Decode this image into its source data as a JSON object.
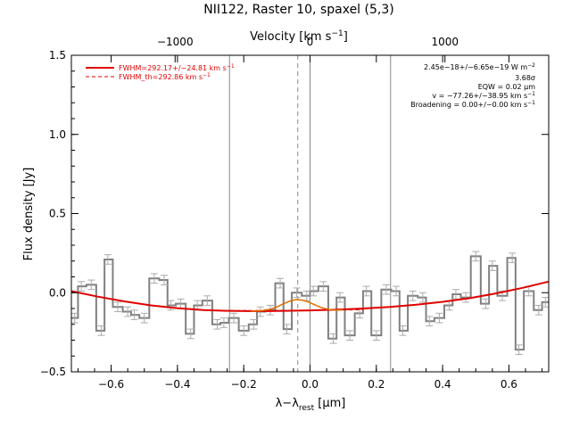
{
  "chart_data": {
    "type": "line",
    "title": "NII122, Raster 10, spaxel (5,3)",
    "xlabel_main": "λ−λ",
    "xlabel_sub": "rest",
    "xlabel_unit": " [μm]",
    "ylabel": "Flux density [Jy]",
    "top_axis_label_main": "Velocity [km s",
    "top_axis_label_sup": "−1",
    "top_axis_label_end": "]",
    "xlim": [
      -0.72,
      0.72
    ],
    "ylim": [
      -0.5,
      1.5
    ],
    "x_ticks": [
      -0.6,
      -0.4,
      -0.2,
      0.0,
      0.2,
      0.4,
      0.6
    ],
    "x_tick_labels": [
      "−0.6",
      "−0.4",
      "−0.2",
      "0.0",
      "0.2",
      "0.4",
      "0.6"
    ],
    "y_ticks": [
      -0.5,
      0.0,
      0.5,
      1.0,
      1.5
    ],
    "y_tick_labels": [
      "−0.5",
      "0.0",
      "0.5",
      "1.0",
      "1.5"
    ],
    "top_ticks_x": [
      -0.407,
      0.0,
      0.407
    ],
    "top_tick_labels": [
      "−1000",
      "0",
      "1000"
    ],
    "vlines_solid": [
      -0.243,
      0.0,
      0.243
    ],
    "vline_dashed": -0.037,
    "legend": [
      {
        "label_main": "FWHM=292.17+/−24.81 km s",
        "label_sup": "−1",
        "style": "solid",
        "color": "#e00000"
      },
      {
        "label_main": "FWHM_th=292.86 km s",
        "label_sup": "−1",
        "style": "dashed",
        "color": "#e00000"
      }
    ],
    "annotations": [
      {
        "main": "2.45e−18+/−6.65e−19 W m",
        "sup": "−2"
      },
      {
        "main": "3.68σ",
        "sup": ""
      },
      {
        "main": "EQW = 0.02 μm",
        "sup": ""
      },
      {
        "main": "v = −77.26+/−38.95 km s",
        "sup": "−1"
      },
      {
        "main": "Broadening = 0.00+/−0.00 km s",
        "sup": "−1"
      }
    ],
    "spectrum": {
      "name": "data",
      "color": "#808080",
      "x": [
        -0.71,
        -0.69,
        -0.66,
        -0.63,
        -0.61,
        -0.58,
        -0.55,
        -0.53,
        -0.5,
        -0.47,
        -0.44,
        -0.42,
        -0.39,
        -0.36,
        -0.34,
        -0.31,
        -0.28,
        -0.26,
        -0.23,
        -0.2,
        -0.17,
        -0.15,
        -0.12,
        -0.09,
        -0.07,
        -0.04,
        -0.01,
        0.01,
        0.04,
        0.07,
        0.09,
        0.12,
        0.15,
        0.17,
        0.2,
        0.23,
        0.26,
        0.28,
        0.31,
        0.34,
        0.36,
        0.39,
        0.42,
        0.44,
        0.47,
        0.5,
        0.53,
        0.55,
        0.58,
        0.61,
        0.63,
        0.66,
        0.69,
        0.71
      ],
      "y": [
        -0.16,
        0.04,
        0.05,
        -0.24,
        0.21,
        -0.09,
        -0.12,
        -0.14,
        -0.16,
        0.09,
        0.08,
        -0.08,
        -0.07,
        -0.26,
        -0.08,
        -0.05,
        -0.2,
        -0.19,
        -0.16,
        -0.24,
        -0.2,
        -0.12,
        -0.11,
        0.06,
        -0.23,
        0.0,
        -0.02,
        0.01,
        0.04,
        -0.29,
        -0.03,
        -0.27,
        -0.13,
        0.01,
        -0.27,
        0.02,
        0.01,
        -0.24,
        -0.02,
        -0.03,
        -0.18,
        -0.16,
        -0.08,
        -0.01,
        -0.03,
        0.23,
        -0.07,
        0.17,
        -0.02,
        0.22,
        -0.36,
        0.01,
        -0.11,
        -0.06
      ],
      "err": [
        0.03,
        0.03,
        0.03,
        0.03,
        0.03,
        0.03,
        0.03,
        0.03,
        0.03,
        0.03,
        0.03,
        0.03,
        0.03,
        0.03,
        0.03,
        0.03,
        0.03,
        0.03,
        0.03,
        0.03,
        0.03,
        0.03,
        0.03,
        0.03,
        0.03,
        0.03,
        0.03,
        0.03,
        0.03,
        0.03,
        0.03,
        0.03,
        0.03,
        0.03,
        0.03,
        0.03,
        0.03,
        0.03,
        0.03,
        0.03,
        0.03,
        0.03,
        0.03,
        0.03,
        0.03,
        0.03,
        0.03,
        0.03,
        0.03,
        0.03,
        0.03,
        0.03,
        0.03,
        0.03
      ]
    },
    "continuum_fit": {
      "name": "continuum",
      "color": "#e00000",
      "x": [
        -0.72,
        -0.64,
        -0.56,
        -0.48,
        -0.4,
        -0.32,
        -0.24,
        -0.16,
        -0.08,
        0.0,
        0.08,
        0.16,
        0.24,
        0.32,
        0.4,
        0.48,
        0.56,
        0.64,
        0.72
      ],
      "y": [
        0.01,
        -0.025,
        -0.055,
        -0.08,
        -0.098,
        -0.11,
        -0.115,
        -0.117,
        -0.115,
        -0.112,
        -0.107,
        -0.1,
        -0.09,
        -0.076,
        -0.058,
        -0.035,
        -0.005,
        0.03,
        0.07
      ]
    },
    "line_fit": {
      "name": "gaussian",
      "color": "#e07000",
      "x": [
        -0.18,
        -0.15,
        -0.12,
        -0.1,
        -0.08,
        -0.06,
        -0.04,
        -0.02,
        0.0,
        0.02,
        0.04,
        0.06,
        0.08,
        0.1
      ],
      "y": [
        -0.117,
        -0.115,
        -0.105,
        -0.09,
        -0.07,
        -0.052,
        -0.043,
        -0.048,
        -0.063,
        -0.082,
        -0.098,
        -0.107,
        -0.11,
        -0.109
      ]
    },
    "thermal_fit": {
      "name": "thermal",
      "color": "#e00000",
      "x": [
        -0.24,
        -0.14,
        -0.04,
        0.06,
        0.16
      ],
      "y": [
        -0.113,
        -0.112,
        -0.112,
        -0.11,
        -0.108
      ]
    }
  }
}
